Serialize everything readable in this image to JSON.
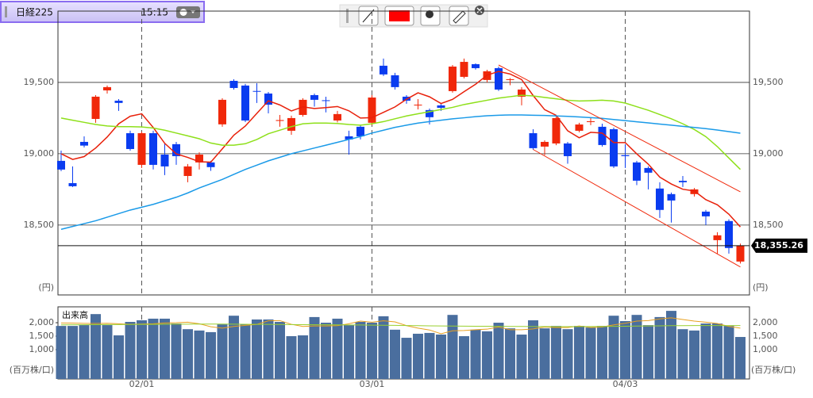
{
  "header": {
    "symbol": "日経225",
    "time": "15:15"
  },
  "chart_data": [
    {
      "type": "candlestick",
      "categories": [
        null,
        null,
        null,
        null,
        null,
        null,
        null,
        "02/01",
        null,
        null,
        null,
        null,
        null,
        null,
        null,
        null,
        null,
        null,
        null,
        null,
        null,
        null,
        null,
        null,
        null,
        null,
        null,
        "03/01",
        null,
        null,
        null,
        null,
        null,
        null,
        null,
        null,
        null,
        null,
        null,
        null,
        null,
        null,
        null,
        null,
        null,
        null,
        null,
        null,
        null,
        "04/03",
        null,
        null,
        null,
        null,
        null,
        null,
        null,
        null,
        null,
        null
      ],
      "open": [
        18950,
        18794,
        19083,
        19244,
        19444,
        19372,
        19144,
        18922,
        19144,
        18994,
        19067,
        18844,
        18939,
        18939,
        19206,
        19511,
        19478,
        19440,
        19422,
        19230,
        19161,
        19272,
        19411,
        19375,
        19233,
        19122,
        19189,
        19217,
        19617,
        19550,
        19400,
        19340,
        19306,
        19339,
        19439,
        19539,
        19628,
        19517,
        19600,
        19517,
        19400,
        19144,
        19050,
        19072,
        19072,
        19161,
        19222,
        19189,
        19172,
        18990,
        18939,
        18900,
        18756,
        18717,
        18810,
        18717,
        18594,
        18394,
        18528,
        18244
      ],
      "high": [
        19022,
        18911,
        19122,
        19411,
        19478,
        19383,
        19161,
        19155,
        19161,
        19072,
        19083,
        18928,
        19010,
        18950,
        19389,
        19522,
        19489,
        19494,
        19433,
        19272,
        19267,
        19389,
        19422,
        19400,
        19300,
        19161,
        19200,
        19411,
        19667,
        19567,
        19411,
        19383,
        19317,
        19356,
        19622,
        19667,
        19633,
        19589,
        19611,
        19530,
        19467,
        19172,
        19094,
        19260,
        19083,
        19217,
        19250,
        19211,
        19183,
        19067,
        18950,
        18911,
        18800,
        18728,
        18844,
        18760,
        18606,
        18450,
        18540,
        18370
      ],
      "low": [
        18878,
        18767,
        19044,
        19217,
        19422,
        19300,
        19022,
        18900,
        18890,
        18850,
        18922,
        18800,
        18890,
        18880,
        19189,
        19450,
        19222,
        19356,
        19283,
        19189,
        19133,
        19260,
        19330,
        19290,
        19220,
        18994,
        19100,
        19200,
        19545,
        19450,
        19350,
        19311,
        19205,
        19300,
        19428,
        19528,
        19590,
        19500,
        19440,
        19480,
        19339,
        19028,
        18990,
        19060,
        18930,
        19150,
        19200,
        19050,
        18900,
        18900,
        18780,
        18750,
        18550,
        18517,
        18767,
        18700,
        18500,
        18300,
        18300,
        18230
      ],
      "close": [
        18889,
        18772,
        19057,
        19400,
        19467,
        19356,
        19033,
        19144,
        18922,
        18911,
        18983,
        18911,
        18994,
        18906,
        19378,
        19461,
        19233,
        19437,
        19344,
        19236,
        19250,
        19378,
        19378,
        19371,
        19278,
        19100,
        19122,
        19394,
        19556,
        19467,
        19372,
        19344,
        19256,
        19322,
        19611,
        19644,
        19600,
        19578,
        19450,
        19522,
        19450,
        19039,
        19083,
        19250,
        18983,
        19205,
        19228,
        19061,
        18911,
        18983,
        18811,
        18867,
        18606,
        18672,
        18800,
        18750,
        18561,
        18428,
        18339,
        18355.26
      ],
      "up_color": "#f0280a",
      "down_color": "#0a3cf0",
      "series": [
        {
          "color": "#e8200a",
          "values": [
            19000,
            18960,
            18980,
            19040,
            19117,
            19210,
            19263,
            19280,
            19184,
            19073,
            18999,
            18974,
            18944,
            18941,
            19034,
            19130,
            19194,
            19283,
            19371,
            19342,
            19300,
            19329,
            19317,
            19323,
            19331,
            19301,
            19250,
            19253,
            19290,
            19328,
            19382,
            19427,
            19399,
            19352,
            19381,
            19435,
            19487,
            19551,
            19577,
            19559,
            19520,
            19408,
            19309,
            19269,
            19161,
            19112,
            19150,
            19145,
            19078,
            19078,
            18999,
            18927,
            18836,
            18788,
            18751,
            18739,
            18678,
            18642,
            18576,
            18487
          ]
        },
        {
          "color": "#8ee01a",
          "values": [
            19250,
            19235,
            19220,
            19205,
            19195,
            19190,
            19190,
            19188,
            19180,
            19165,
            19145,
            19125,
            19105,
            19075,
            19060,
            19060,
            19070,
            19100,
            19140,
            19165,
            19190,
            19210,
            19215,
            19215,
            19212,
            19205,
            19200,
            19210,
            19225,
            19245,
            19265,
            19280,
            19295,
            19310,
            19325,
            19345,
            19360,
            19375,
            19390,
            19400,
            19410,
            19405,
            19395,
            19385,
            19375,
            19370,
            19372,
            19375,
            19370,
            19355,
            19330,
            19305,
            19275,
            19245,
            19210,
            19170,
            19120,
            19050,
            18970,
            18890
          ]
        },
        {
          "color": "#1a9ae8",
          "values": [
            18470,
            18490,
            18510,
            18530,
            18555,
            18580,
            18605,
            18625,
            18645,
            18670,
            18695,
            18725,
            18760,
            18790,
            18820,
            18855,
            18890,
            18920,
            18950,
            18975,
            19000,
            19020,
            19040,
            19060,
            19080,
            19100,
            19120,
            19145,
            19165,
            19185,
            19200,
            19215,
            19225,
            19235,
            19245,
            19252,
            19260,
            19266,
            19270,
            19272,
            19272,
            19270,
            19268,
            19265,
            19262,
            19258,
            19253,
            19248,
            19240,
            19232,
            19224,
            19216,
            19208,
            19200,
            19192,
            19184,
            19176,
            19166,
            19155,
            19144
          ]
        }
      ],
      "trend_lines": [
        {
          "color": "#f0280a",
          "x": [
            38,
            59
          ],
          "values": [
            19622,
            18733
          ]
        },
        {
          "color": "#f0280a",
          "x": [
            41,
            59
          ],
          "values": [
            19030,
            18206
          ]
        }
      ],
      "last_price": {
        "value": 18355.26,
        "label": "18,355.26"
      },
      "ylim": [
        18010,
        20000
      ],
      "yticks": [
        {
          "value": 19500,
          "label": "19,500"
        },
        {
          "value": 19000,
          "label": "19,000"
        },
        {
          "value": 18500,
          "label": "18,500"
        }
      ],
      "y_unit": "(円)",
      "grid": true
    },
    {
      "type": "bar",
      "title": "出来高",
      "color": "#4a6e9e",
      "values": [
        1880,
        1880,
        1910,
        2320,
        1910,
        1530,
        2030,
        2090,
        2150,
        2150,
        1970,
        1760,
        1710,
        1650,
        1940,
        2260,
        1940,
        2120,
        2120,
        2030,
        1500,
        1530,
        2210,
        2000,
        2150,
        1910,
        2030,
        2000,
        2240,
        1740,
        1440,
        1590,
        1620,
        1560,
        2290,
        1500,
        1740,
        1680,
        2000,
        1790,
        1560,
        2090,
        1790,
        1880,
        1760,
        1880,
        1820,
        1880,
        2260,
        2060,
        2290,
        1910,
        2210,
        2440,
        1760,
        1710,
        1970,
        1970,
        1880,
        1470
      ],
      "series": [
        {
          "color": "#e8a020",
          "values": [
            1990,
            1985,
            1975,
            1970,
            1980,
            1960,
            1940,
            1950,
            1960,
            1990,
            2000,
            2020,
            1960,
            1850,
            1800,
            1860,
            1900,
            1940,
            2070,
            2080,
            1940,
            1860,
            1880,
            1880,
            1890,
            1960,
            2060,
            2020,
            2070,
            2030,
            1890,
            1800,
            1730,
            1590,
            1700,
            1710,
            1740,
            1760,
            1840,
            1740,
            1740,
            1770,
            1840,
            1820,
            1820,
            1880,
            1820,
            1840,
            1920,
            1980,
            2060,
            2080,
            2140,
            2180,
            2120,
            2060,
            2020,
            1970,
            1860,
            1800
          ]
        },
        {
          "color": "#9ad030",
          "values": [
            1920,
            1922,
            1925,
            1928,
            1930,
            1932,
            1935,
            1938,
            1940,
            1942,
            1945,
            1947,
            1950,
            1950,
            1948,
            1945,
            1943,
            1940,
            1938,
            1935,
            1930,
            1928,
            1925,
            1922,
            1920,
            1918,
            1915,
            1910,
            1905,
            1900,
            1895,
            1890,
            1885,
            1880,
            1875,
            1872,
            1870,
            1868,
            1865,
            1862,
            1860,
            1858,
            1856,
            1855,
            1855,
            1856,
            1858,
            1860,
            1865,
            1870,
            1875,
            1880,
            1885,
            1890,
            1892,
            1893,
            1894,
            1895,
            1894,
            1893
          ]
        }
      ],
      "ylim": [
        -90,
        2590
      ],
      "yticks": [
        {
          "value": 2000,
          "label": "2,000"
        },
        {
          "value": 1500,
          "label": "1,500"
        },
        {
          "value": 1000,
          "label": "1,000"
        }
      ],
      "y_unit": "(百万株/口)"
    }
  ]
}
